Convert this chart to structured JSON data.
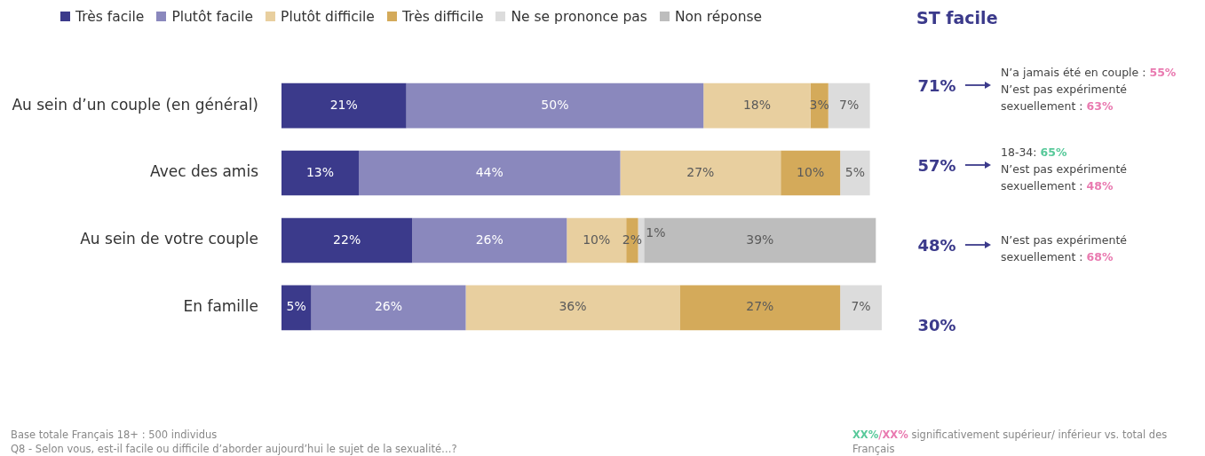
{
  "chart_data": {
    "type": "bar",
    "orientation": "horizontal",
    "stacked": true,
    "legend": "top",
    "categories": [
      "Au sein d’un couple (en général)",
      "Avec des amis",
      "Au sein de votre couple",
      "En famille"
    ],
    "series": [
      {
        "name": "Très facile",
        "color": "#3b3a8b",
        "values": [
          21,
          13,
          22,
          5
        ],
        "value_labels": [
          "21%",
          "13%",
          "22%",
          "5%"
        ]
      },
      {
        "name": "Plutôt facile",
        "color": "#8a88bd",
        "values": [
          50,
          44,
          26,
          26
        ],
        "value_labels": [
          "50%",
          "44%",
          "26%",
          "26%"
        ]
      },
      {
        "name": "Plutôt difficile",
        "color": "#e8cf9f",
        "values": [
          18,
          27,
          10,
          36
        ],
        "value_labels": [
          "18%",
          "27%",
          "10%",
          "36%"
        ]
      },
      {
        "name": "Très difficile",
        "color": "#d4aa5a",
        "values": [
          3,
          10,
          2,
          27
        ],
        "value_labels": [
          "3%",
          "10%",
          "2%",
          "27%"
        ]
      },
      {
        "name": "Ne se prononce pas",
        "color": "#dcdcdc",
        "values": [
          7,
          5,
          1,
          7
        ],
        "value_labels": [
          "7%",
          "5%",
          "1%",
          "7%"
        ]
      },
      {
        "name": "Non réponse",
        "color": "#bdbdbd",
        "values": [
          null,
          null,
          39,
          null
        ],
        "value_labels": [
          null,
          null,
          "39%",
          null
        ]
      }
    ],
    "annotations": [
      "ST facile",
      "71%",
      "N’a jamais été en couple :",
      "55%",
      "N’est pas expérimenté sexuellement :",
      "63%",
      "57%",
      "18-34:",
      "65%",
      "N’est pas expérimenté sexuellement :",
      "48%",
      "48%",
      "N’est pas expérimenté sexuellement :",
      "68%",
      "30%",
      "Base totale Français 18+ : 500 individus",
      "Q8 - Selon vous, est-il facile ou difficile d’aborder aujourd’hui le sujet de la sexualité…?",
      "XX%",
      "/",
      "XX%",
      "significativement supérieur/ inférieur vs. total des Français"
    ]
  }
}
